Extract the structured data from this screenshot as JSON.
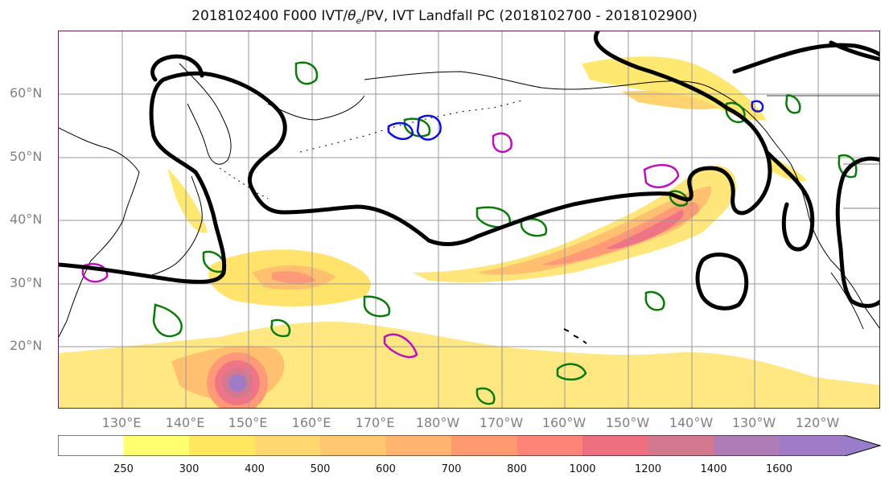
{
  "title": "2018102400 F000 IVT/θe/PV, IVT Landfall PC (2018102700 - 2018102900)",
  "title_parts": {
    "prefix": "2018102400 F000 IVT/",
    "theta": "θ",
    "theta_sub": "e",
    "suffix": "/PV, IVT Landfall PC (2018102700 - 2018102900)"
  },
  "lat_labels": [
    "60°N",
    "50°N",
    "40°N",
    "30°N",
    "20°N"
  ],
  "lon_labels": [
    "130°E",
    "140°E",
    "150°E",
    "160°E",
    "170°E",
    "180°W",
    "170°W",
    "160°W",
    "150°W",
    "140°W",
    "130°W",
    "120°W"
  ],
  "colorbar": {
    "ticks": [
      "250",
      "300",
      "400",
      "500",
      "600",
      "700",
      "800",
      "1000",
      "1200",
      "1400",
      "1600"
    ],
    "colors": [
      "#ffffff",
      "#ffff70",
      "#ffe860",
      "#ffd870",
      "#ffc870",
      "#ffb470",
      "#ff9a70",
      "#ff8478",
      "#ee7080",
      "#d47890",
      "#b07cb8",
      "#a07cc8",
      "#9a7ccc"
    ]
  },
  "colors": {
    "ivt_contour": "#000000",
    "theta_e_green": "#0a7a0a",
    "pv_blue": "#1010dd",
    "pv_magenta": "#bb11bb",
    "gridline": "#9a9a9a",
    "coastline": "#000000"
  }
}
